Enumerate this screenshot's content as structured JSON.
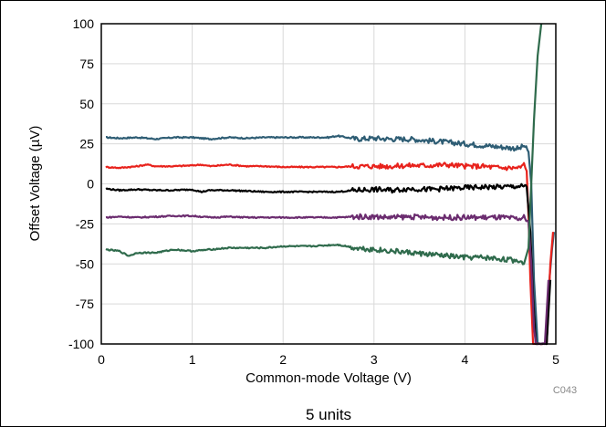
{
  "chart_data": {
    "type": "line",
    "title": "",
    "xlabel": "Common-mode Voltage (V)",
    "ylabel": "Offset Voltage (µV)",
    "xlim": [
      0,
      5
    ],
    "ylim": [
      -100,
      100
    ],
    "xticks": [
      "0",
      "1",
      "2",
      "3",
      "4",
      "5"
    ],
    "yticks": [
      "100",
      "75",
      "50",
      "25",
      "0",
      "-25",
      "-50",
      "-75",
      "-100"
    ],
    "grid": true,
    "figure_code": "C043",
    "caption": "5 units",
    "series": [
      {
        "color": "#2e5d74",
        "points": [
          [
            0.05,
            29
          ],
          [
            0.2,
            28.5
          ],
          [
            0.4,
            29
          ],
          [
            0.6,
            28
          ],
          [
            0.8,
            29
          ],
          [
            1.0,
            29
          ],
          [
            1.2,
            28
          ],
          [
            1.4,
            29
          ],
          [
            1.6,
            28.5
          ],
          [
            1.8,
            29
          ],
          [
            2.0,
            29
          ],
          [
            2.3,
            29
          ],
          [
            2.5,
            29
          ],
          [
            2.6,
            30
          ],
          [
            2.8,
            28
          ],
          [
            3.0,
            28.5
          ],
          [
            3.2,
            28
          ],
          [
            3.4,
            28
          ],
          [
            3.6,
            27
          ],
          [
            3.8,
            26
          ],
          [
            4.0,
            25
          ],
          [
            4.2,
            24
          ],
          [
            4.4,
            23
          ],
          [
            4.6,
            22
          ],
          [
            4.65,
            24
          ],
          [
            4.7,
            20
          ],
          [
            4.73,
            0
          ],
          [
            4.76,
            -60
          ],
          [
            4.8,
            -100
          ],
          [
            4.9,
            -100
          ],
          [
            4.93,
            -60
          ],
          [
            4.96,
            -40
          ],
          [
            4.98,
            -30
          ]
        ]
      },
      {
        "color": "#e8221c",
        "points": [
          [
            0.05,
            10.5
          ],
          [
            0.2,
            10
          ],
          [
            0.4,
            11
          ],
          [
            0.5,
            12
          ],
          [
            0.6,
            11
          ],
          [
            0.8,
            11
          ],
          [
            1.0,
            11.5
          ],
          [
            1.1,
            12
          ],
          [
            1.2,
            11
          ],
          [
            1.4,
            12
          ],
          [
            1.6,
            11
          ],
          [
            1.8,
            11
          ],
          [
            2.0,
            10.5
          ],
          [
            2.3,
            10.5
          ],
          [
            2.6,
            10.5
          ],
          [
            2.8,
            11
          ],
          [
            3.0,
            11
          ],
          [
            3.2,
            11
          ],
          [
            3.4,
            11.5
          ],
          [
            3.6,
            11.5
          ],
          [
            3.8,
            12
          ],
          [
            4.0,
            11
          ],
          [
            4.2,
            11
          ],
          [
            4.4,
            10
          ],
          [
            4.6,
            10
          ],
          [
            4.65,
            12
          ],
          [
            4.68,
            8
          ],
          [
            4.7,
            -20
          ],
          [
            4.72,
            -60
          ],
          [
            4.75,
            -100
          ],
          [
            4.9,
            -100
          ],
          [
            4.94,
            -50
          ],
          [
            4.97,
            -30
          ]
        ]
      },
      {
        "color": "#000000",
        "points": [
          [
            0.05,
            -3
          ],
          [
            0.2,
            -4
          ],
          [
            0.4,
            -3.5
          ],
          [
            0.6,
            -4
          ],
          [
            0.8,
            -4
          ],
          [
            1.0,
            -3.5
          ],
          [
            1.1,
            -5
          ],
          [
            1.2,
            -4
          ],
          [
            1.4,
            -4
          ],
          [
            1.6,
            -4.5
          ],
          [
            1.8,
            -5
          ],
          [
            2.0,
            -5
          ],
          [
            2.3,
            -5
          ],
          [
            2.6,
            -5
          ],
          [
            2.8,
            -4
          ],
          [
            3.0,
            -3.5
          ],
          [
            3.2,
            -4
          ],
          [
            3.4,
            -3
          ],
          [
            3.6,
            -3.5
          ],
          [
            3.8,
            -3
          ],
          [
            4.0,
            -2.5
          ],
          [
            4.2,
            -2
          ],
          [
            4.4,
            -2
          ],
          [
            4.6,
            -1.5
          ],
          [
            4.68,
            -2
          ],
          [
            4.72,
            -30
          ],
          [
            4.75,
            -70
          ],
          [
            4.78,
            -100
          ],
          [
            4.9,
            -100
          ],
          [
            4.94,
            -60
          ]
        ]
      },
      {
        "color": "#6b2c6f",
        "points": [
          [
            0.05,
            -21
          ],
          [
            0.2,
            -20.5
          ],
          [
            0.4,
            -21
          ],
          [
            0.6,
            -20.5
          ],
          [
            0.8,
            -20
          ],
          [
            1.0,
            -20
          ],
          [
            1.2,
            -21
          ],
          [
            1.4,
            -20.5
          ],
          [
            1.6,
            -21
          ],
          [
            1.8,
            -21
          ],
          [
            2.0,
            -21
          ],
          [
            2.3,
            -21
          ],
          [
            2.6,
            -21
          ],
          [
            2.8,
            -20.5
          ],
          [
            3.0,
            -20.5
          ],
          [
            3.2,
            -21
          ],
          [
            3.4,
            -20.5
          ],
          [
            3.6,
            -21
          ],
          [
            3.8,
            -21
          ],
          [
            4.0,
            -21
          ],
          [
            4.2,
            -21
          ],
          [
            4.4,
            -21
          ],
          [
            4.6,
            -22
          ],
          [
            4.65,
            -21
          ],
          [
            4.7,
            -24
          ],
          [
            4.73,
            -50
          ],
          [
            4.76,
            -90
          ],
          [
            4.78,
            -100
          ],
          [
            4.88,
            -100
          ],
          [
            4.92,
            -60
          ]
        ]
      },
      {
        "color": "#2f6b4c",
        "points": [
          [
            0.05,
            -41
          ],
          [
            0.2,
            -42
          ],
          [
            0.3,
            -45
          ],
          [
            0.4,
            -43
          ],
          [
            0.6,
            -43
          ],
          [
            0.8,
            -41
          ],
          [
            1.0,
            -42
          ],
          [
            1.2,
            -41
          ],
          [
            1.4,
            -40
          ],
          [
            1.6,
            -40
          ],
          [
            1.8,
            -40
          ],
          [
            2.0,
            -39
          ],
          [
            2.3,
            -39
          ],
          [
            2.6,
            -38
          ],
          [
            2.8,
            -40
          ],
          [
            3.0,
            -41
          ],
          [
            3.2,
            -42
          ],
          [
            3.4,
            -43
          ],
          [
            3.6,
            -44
          ],
          [
            3.8,
            -45
          ],
          [
            4.0,
            -46
          ],
          [
            4.2,
            -46
          ],
          [
            4.4,
            -47
          ],
          [
            4.6,
            -48
          ],
          [
            4.65,
            -50
          ],
          [
            4.7,
            -40
          ],
          [
            4.73,
            0
          ],
          [
            4.76,
            40
          ],
          [
            4.8,
            80
          ],
          [
            4.84,
            100
          ]
        ]
      }
    ]
  }
}
